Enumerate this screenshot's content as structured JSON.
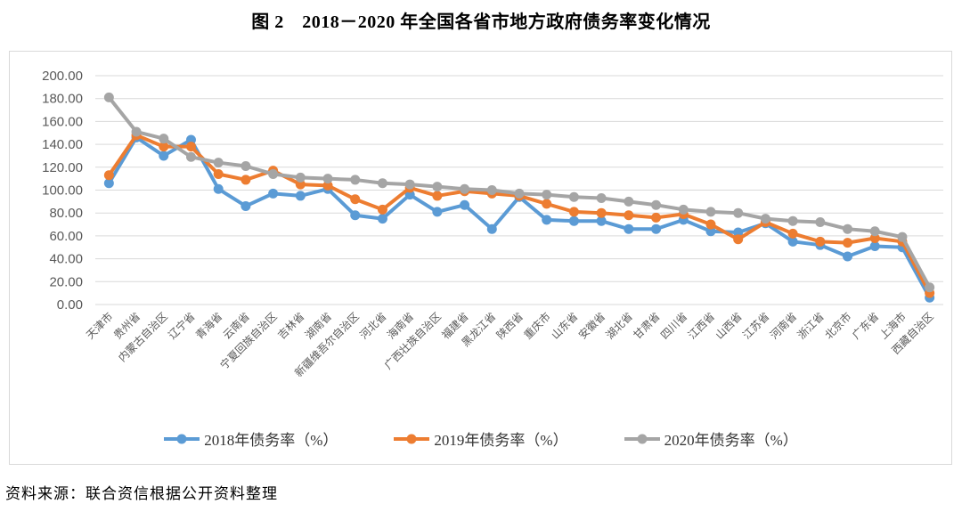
{
  "title": "图 2　2018－2020 年全国各省市地方政府债务率变化情况",
  "source_note": "资料来源：联合资信根据公开资料整理",
  "colors": {
    "series_2018": "#5B9BD5",
    "series_2019": "#ED7D31",
    "series_2020": "#A5A5A5",
    "gridline": "#d9d9d9",
    "axis_text": "#595959",
    "chart_border": "#d9d9d9"
  },
  "chart_data": {
    "type": "line",
    "title": "图 2　2018－2020 年全国各省市地方政府债务率变化情况",
    "categories": [
      "天津市",
      "贵州省",
      "内蒙古自治区",
      "辽宁省",
      "青海省",
      "云南省",
      "宁夏回族自治区",
      "吉林省",
      "湖南省",
      "新疆维吾尔自治区",
      "河北省",
      "海南省",
      "广西壮族自治区",
      "福建省",
      "黑龙江省",
      "陕西省",
      "重庆市",
      "山东省",
      "安徽省",
      "湖北省",
      "甘肃省",
      "四川省",
      "江西省",
      "山西省",
      "江苏省",
      "河南省",
      "浙江省",
      "北京市",
      "广东省",
      "上海市",
      "西藏自治区"
    ],
    "series": [
      {
        "name": "2018年债务率（%）",
        "color_key": "series_2018",
        "values": [
          106,
          146,
          130,
          144,
          101,
          86,
          97,
          95,
          101,
          78,
          75,
          96,
          81,
          87,
          66,
          94,
          74,
          73,
          73,
          66,
          66,
          74,
          64,
          63,
          71,
          55,
          52,
          42,
          51,
          50,
          6
        ]
      },
      {
        "name": "2019年债务率（%）",
        "color_key": "series_2019",
        "values": [
          113,
          148,
          138,
          138,
          114,
          109,
          117,
          105,
          104,
          92,
          83,
          102,
          95,
          99,
          97,
          95,
          88,
          81,
          80,
          78,
          76,
          79,
          70,
          57,
          72,
          62,
          55,
          54,
          58,
          55,
          10
        ]
      },
      {
        "name": "2020年债务率（%）",
        "color_key": "series_2020",
        "values": [
          181,
          151,
          145,
          129,
          124,
          121,
          114,
          111,
          110,
          109,
          106,
          105,
          103,
          101,
          100,
          97,
          96,
          94,
          93,
          90,
          87,
          83,
          81,
          80,
          75,
          73,
          72,
          66,
          64,
          59,
          15
        ]
      }
    ],
    "ylim": [
      0,
      200
    ],
    "ytick_step": 20,
    "ytick_format": "0.00",
    "grid": true,
    "legend_position": "bottom",
    "x_label_rotation": -45
  }
}
